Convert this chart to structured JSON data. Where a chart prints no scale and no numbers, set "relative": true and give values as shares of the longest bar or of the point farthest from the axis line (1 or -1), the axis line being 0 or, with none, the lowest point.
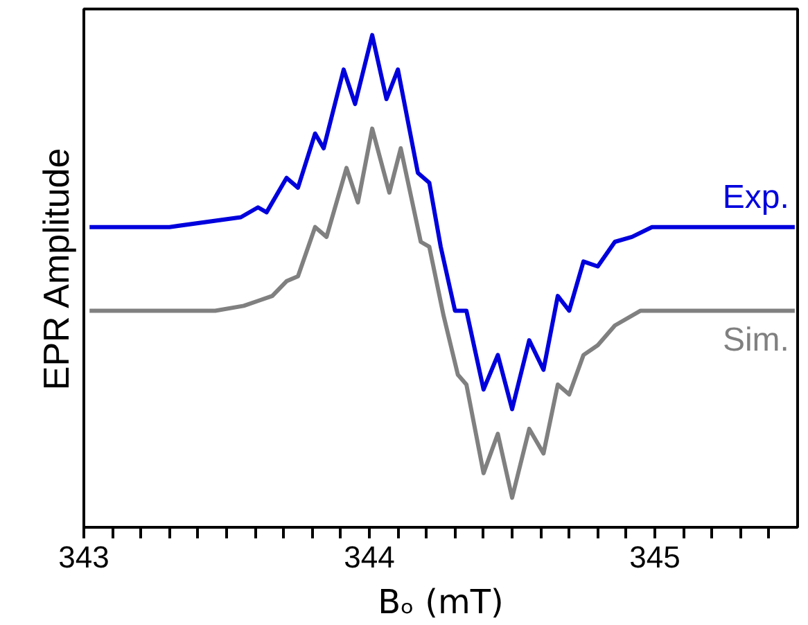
{
  "chart_data": {
    "type": "line",
    "relative": true,
    "xlabel": "Bₒ (mT)",
    "ylabel": "EPR Amplitude",
    "xlim": [
      343,
      345.5
    ],
    "xticks": [
      343,
      344,
      345,
      {
        "value": 343.1,
        "label": null
      },
      {
        "value": 343.2,
        "label": null
      },
      {
        "value": 343.3,
        "label": null
      },
      {
        "value": 343.4,
        "label": null
      },
      {
        "value": 343.5,
        "label": null
      },
      {
        "value": 343.6,
        "label": null
      },
      {
        "value": 343.7,
        "label": null
      },
      {
        "value": 343.8,
        "label": null
      },
      {
        "value": 343.9,
        "label": null
      },
      {
        "value": 344.1,
        "label": null
      },
      {
        "value": 344.2,
        "label": null
      },
      {
        "value": 344.3,
        "label": null
      },
      {
        "value": 344.4,
        "label": null
      },
      {
        "value": 344.5,
        "label": null
      },
      {
        "value": 344.6,
        "label": null
      },
      {
        "value": 344.7,
        "label": null
      },
      {
        "value": 344.8,
        "label": null
      },
      {
        "value": 344.9,
        "label": null
      },
      {
        "value": 345.1,
        "label": null
      },
      {
        "value": 345.2,
        "label": null
      },
      {
        "value": 345.3,
        "label": null
      },
      {
        "value": 345.4,
        "label": null
      }
    ],
    "grid": false,
    "legend": false,
    "marker": "none",
    "line_style": "solid",
    "series": [
      {
        "name": "Exp.",
        "color": "#0000dd",
        "x": [
          343.02,
          343.3,
          343.55,
          343.61,
          343.64,
          343.71,
          343.75,
          343.81,
          343.84,
          343.91,
          343.95,
          344.01,
          344.06,
          344.1,
          344.17,
          344.21,
          344.25,
          344.3,
          344.34,
          344.4,
          344.45,
          344.5,
          344.56,
          344.61,
          344.66,
          344.7,
          344.75,
          344.8,
          344.86,
          344.92,
          344.99,
          345.49
        ],
        "values": [
          0.61,
          0.61,
          0.63,
          0.65,
          0.64,
          0.71,
          0.69,
          0.8,
          0.77,
          0.93,
          0.86,
          1.0,
          0.87,
          0.93,
          0.72,
          0.7,
          0.57,
          0.44,
          0.44,
          0.28,
          0.35,
          0.24,
          0.38,
          0.32,
          0.47,
          0.44,
          0.54,
          0.53,
          0.58,
          0.59,
          0.61,
          0.61
        ]
      },
      {
        "name": "Sim.",
        "color": "#808080",
        "x": [
          343.02,
          343.46,
          343.56,
          343.61,
          343.66,
          343.71,
          343.75,
          343.81,
          343.85,
          343.92,
          343.96,
          344.01,
          344.07,
          344.11,
          344.18,
          344.21,
          344.26,
          344.31,
          344.34,
          344.4,
          344.45,
          344.5,
          344.56,
          344.61,
          344.66,
          344.7,
          344.75,
          344.8,
          344.86,
          344.95,
          345.49
        ],
        "values": [
          0.44,
          0.44,
          0.45,
          0.46,
          0.47,
          0.5,
          0.51,
          0.61,
          0.59,
          0.73,
          0.66,
          0.81,
          0.68,
          0.77,
          0.58,
          0.57,
          0.43,
          0.31,
          0.29,
          0.11,
          0.19,
          0.06,
          0.2,
          0.15,
          0.29,
          0.27,
          0.35,
          0.37,
          0.41,
          0.44,
          0.44
        ]
      }
    ]
  }
}
